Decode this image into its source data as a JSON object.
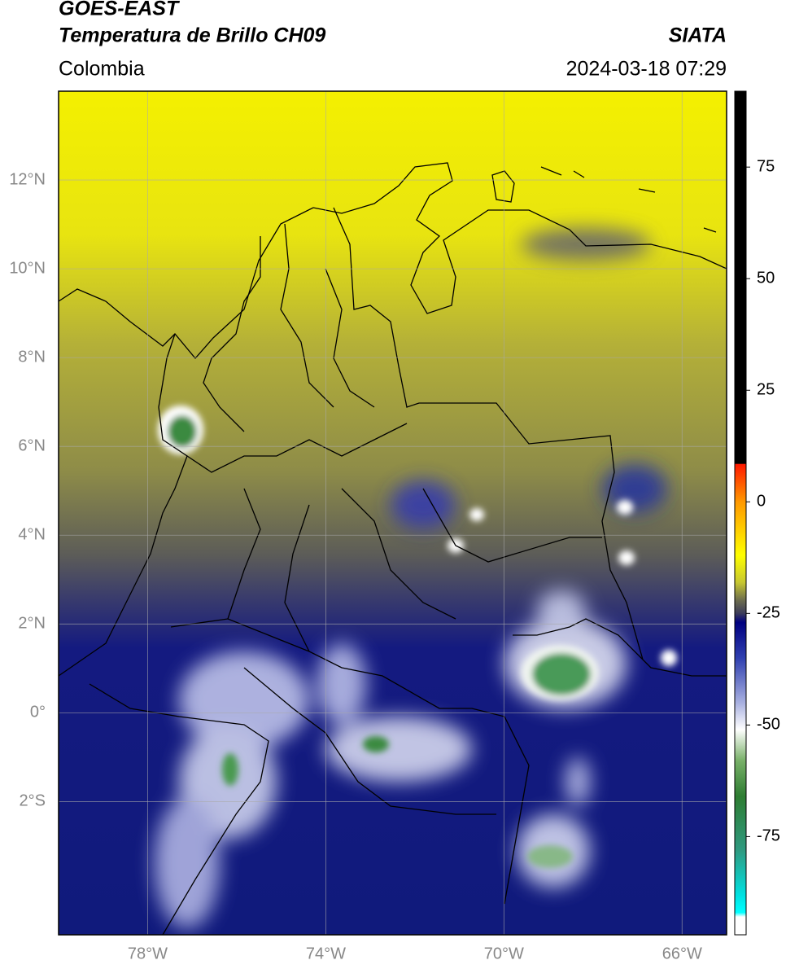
{
  "header": {
    "title_line1": "GOES-EAST",
    "title_line2": "Temperatura de Brillo CH09",
    "agency": "SIATA",
    "region": "Colombia",
    "datetime": "2024-03-18 07:29"
  },
  "map": {
    "xlim": [
      -80,
      -65
    ],
    "ylim": [
      -5,
      14
    ],
    "xticks": [
      {
        "value": -78,
        "label": "78°W"
      },
      {
        "value": -74,
        "label": "74°W"
      },
      {
        "value": -70,
        "label": "70°W"
      },
      {
        "value": -66,
        "label": "66°W"
      }
    ],
    "yticks": [
      {
        "value": 12,
        "label": "12°N"
      },
      {
        "value": 10,
        "label": "10°N"
      },
      {
        "value": 8,
        "label": "8°N"
      },
      {
        "value": 6,
        "label": "6°N"
      },
      {
        "value": 4,
        "label": "4°N"
      },
      {
        "value": 2,
        "label": "2°N"
      },
      {
        "value": 0,
        "label": "0°"
      },
      {
        "value": -2,
        "label": "2°S"
      }
    ],
    "grid": true
  },
  "colorbar": {
    "lim": [
      -97,
      92
    ],
    "ticks": [
      75,
      50,
      25,
      0,
      -25,
      -50,
      -75
    ],
    "colormap": [
      {
        "value": 92,
        "color": "#000000"
      },
      {
        "value": 8.6,
        "color": "#000000"
      },
      {
        "value": 8.4,
        "color": "#ff1a00"
      },
      {
        "value": 0,
        "color": "#ff9900"
      },
      {
        "value": -12,
        "color": "#ffff00"
      },
      {
        "value": -18,
        "color": "#c8c830"
      },
      {
        "value": -22,
        "color": "#6e6e4e"
      },
      {
        "value": -25,
        "color": "#3c3c5a"
      },
      {
        "value": -27,
        "color": "#000080"
      },
      {
        "value": -35,
        "color": "#3040b0"
      },
      {
        "value": -45,
        "color": "#a8b0e0"
      },
      {
        "value": -51,
        "color": "#ffffff"
      },
      {
        "value": -58,
        "color": "#78b068"
      },
      {
        "value": -66,
        "color": "#2e7d32"
      },
      {
        "value": -78,
        "color": "#2f9a80"
      },
      {
        "value": -88,
        "color": "#00e0e0"
      },
      {
        "value": -92,
        "color": "#00ffff"
      },
      {
        "value": -93,
        "color": "#ffffff"
      },
      {
        "value": -97,
        "color": "#ffffff"
      }
    ]
  }
}
